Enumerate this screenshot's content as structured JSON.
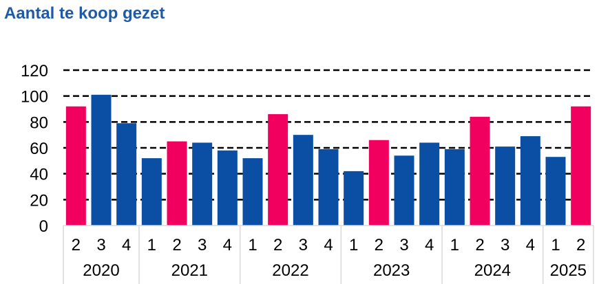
{
  "title": "Aantal te koop gezet",
  "colors": {
    "highlight": "#f2005f",
    "normal": "#0a4fa3",
    "grid": "#000000",
    "title": "#1f5aa6"
  },
  "chart_data": {
    "type": "bar",
    "title": "Aantal te koop gezet",
    "xlabel": "",
    "ylabel": "",
    "ylim": [
      0,
      120
    ],
    "yticks": [
      "0",
      "20",
      "40",
      "60",
      "80",
      "100",
      "120"
    ],
    "grid": "dashed horizontal",
    "categories": [
      "2",
      "3",
      "4",
      "1",
      "2",
      "3",
      "4",
      "1",
      "2",
      "3",
      "4",
      "1",
      "2",
      "3",
      "4",
      "1",
      "2",
      "3",
      "4",
      "1",
      "2"
    ],
    "years": [
      {
        "label": "2020",
        "count": 3
      },
      {
        "label": "2021",
        "count": 4
      },
      {
        "label": "2022",
        "count": 4
      },
      {
        "label": "2023",
        "count": 4
      },
      {
        "label": "2024",
        "count": 4
      },
      {
        "label": "2025",
        "count": 2
      }
    ],
    "values": [
      92,
      101,
      79,
      52,
      65,
      64,
      58,
      52,
      86,
      70,
      59,
      42,
      66,
      54,
      64,
      59,
      84,
      61,
      69,
      53,
      92
    ],
    "highlighted": [
      true,
      false,
      false,
      false,
      true,
      false,
      false,
      false,
      true,
      false,
      false,
      false,
      true,
      false,
      false,
      false,
      true,
      false,
      false,
      false,
      true
    ]
  }
}
